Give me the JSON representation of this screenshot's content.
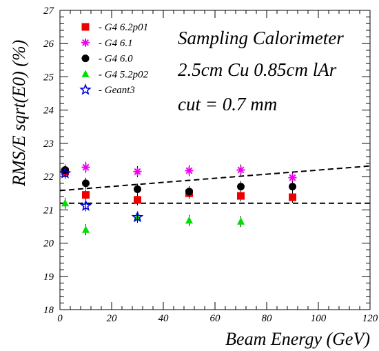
{
  "chart_data": {
    "type": "scatter",
    "xlabel": "Beam Energy (GeV)",
    "ylabel": "RMS/E sqrt(E0) (%)",
    "xlim": [
      0,
      120
    ],
    "ylim": [
      18,
      27
    ],
    "x_ticks": [
      "0",
      "20",
      "40",
      "60",
      "80",
      "100",
      "120"
    ],
    "y_ticks": [
      "18",
      "19",
      "20",
      "21",
      "22",
      "23",
      "24",
      "25",
      "26",
      "27"
    ],
    "annotations": [
      "Sampling Calorimeter",
      "2.5cm Cu 0.85cm lAr",
      "cut = 0.7 mm"
    ],
    "legend_position": "top-left",
    "series": [
      {
        "name": "- G4 6.2p01",
        "marker": "square",
        "color": "#ee0000",
        "x": [
          2,
          10,
          30,
          50,
          70,
          90
        ],
        "y": [
          22.15,
          21.45,
          21.3,
          21.5,
          21.42,
          21.38
        ]
      },
      {
        "name": "- G4 6.1",
        "marker": "asterisk",
        "color": "#ee00ee",
        "x": [
          2,
          10,
          30,
          50,
          70,
          90
        ],
        "y": [
          22.15,
          22.28,
          22.15,
          22.18,
          22.2,
          21.97
        ]
      },
      {
        "name": "- G4 6.0",
        "marker": "circle",
        "color": "#000000",
        "x": [
          2,
          10,
          30,
          50,
          70,
          90
        ],
        "y": [
          22.2,
          21.8,
          21.62,
          21.55,
          21.7,
          21.7
        ]
      },
      {
        "name": "- G4 5.2p02",
        "marker": "triangle",
        "color": "#00dd00",
        "x": [
          2,
          10,
          30,
          50,
          70,
          90
        ],
        "y": [
          21.2,
          20.4,
          20.78,
          20.68,
          20.65,
          null
        ]
      },
      {
        "name": "- Geant3",
        "marker": "star",
        "color": "#0000dd",
        "x": [
          2,
          10,
          30
        ],
        "y": [
          22.1,
          21.12,
          20.78
        ]
      }
    ],
    "fit_lines": [
      {
        "style": "dashed",
        "x": [
          0,
          120
        ],
        "y": [
          21.58,
          22.32
        ]
      },
      {
        "style": "dashed",
        "x": [
          0,
          120
        ],
        "y": [
          21.2,
          21.2
        ]
      }
    ]
  }
}
